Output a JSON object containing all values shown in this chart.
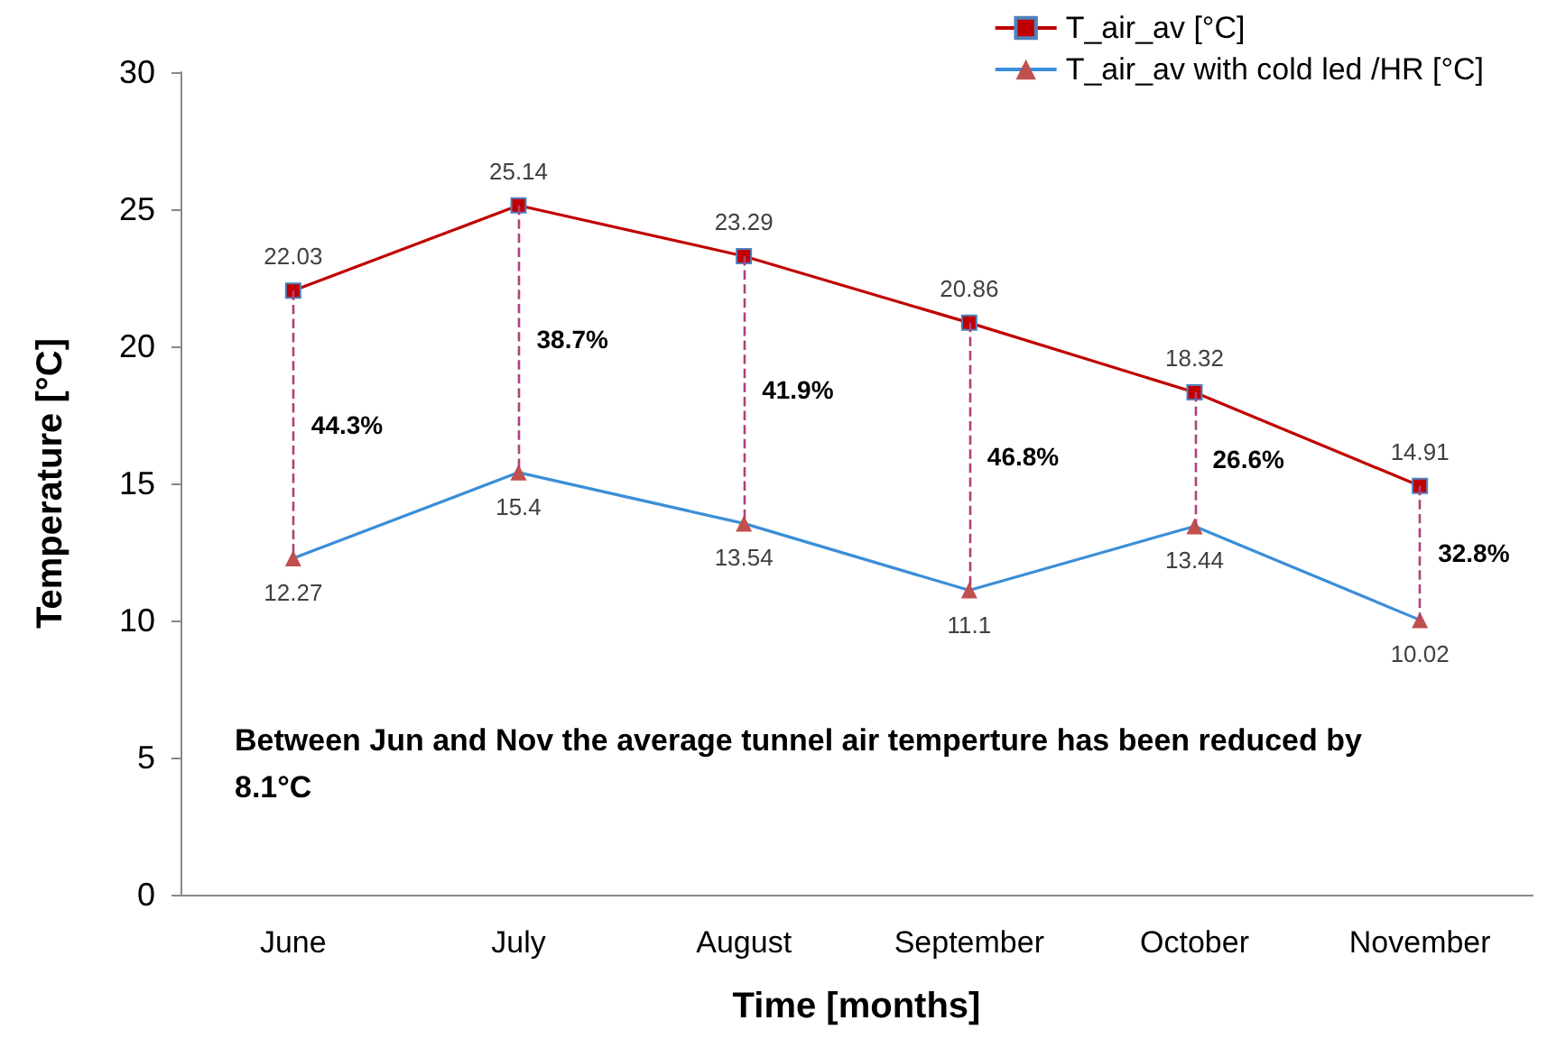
{
  "chart_data": {
    "type": "line",
    "xlabel": "Time [months]",
    "ylabel": "Temperature [°C]",
    "categories": [
      "June",
      "July",
      "August",
      "September",
      "October",
      "November"
    ],
    "series": [
      {
        "name": "T_air_av [°C]",
        "color": "#c00000",
        "marker": "square",
        "values": [
          22.03,
          25.14,
          23.29,
          20.86,
          18.32,
          14.91
        ]
      },
      {
        "name": "T_air_av with cold led /HR [°C]",
        "color": "#3b8ed8",
        "marker": "triangle",
        "values": [
          12.27,
          15.4,
          13.54,
          11.1,
          13.44,
          10.02
        ]
      }
    ],
    "ylim": [
      0,
      30
    ],
    "yticks": [
      0,
      5,
      10,
      15,
      20,
      25,
      30
    ],
    "grid": false,
    "legend": "top right",
    "data_labels": true,
    "line_style": "solid",
    "annotations": [
      "44.3%",
      "38.7%",
      "41.9%",
      "46.8%",
      "26.6%",
      "32.8%",
      "Between Jun and Nov the average tunnel air temperture has been reduced by 8.1°C"
    ]
  }
}
